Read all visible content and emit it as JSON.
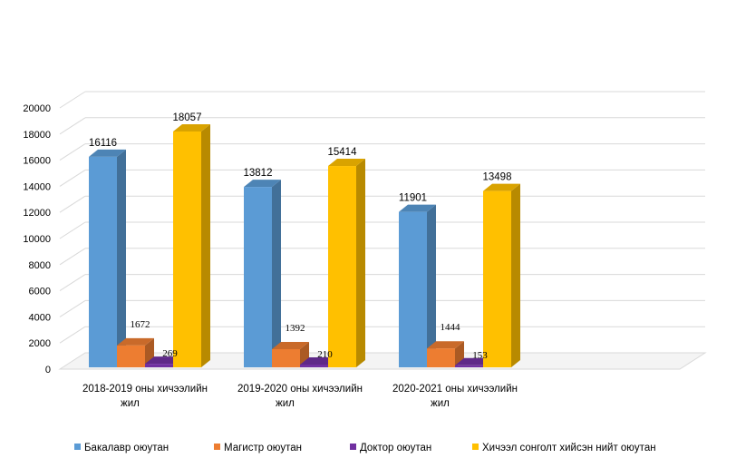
{
  "chart_data": {
    "type": "bar",
    "title": "",
    "xlabel": "",
    "ylabel": "",
    "ylim": [
      0,
      20000
    ],
    "y_ticks": [
      0,
      2000,
      4000,
      6000,
      8000,
      10000,
      12000,
      14000,
      16000,
      18000,
      20000
    ],
    "categories": [
      [
        "2018-2019 оны хичээлийн",
        "жил"
      ],
      [
        "2019-2020 оны хичээлийн",
        "жил"
      ],
      [
        "2020-2021 оны хичээлийн",
        "жил"
      ]
    ],
    "series": [
      {
        "name": "Бакалавр  оюутан",
        "values": [
          16116,
          13812,
          11901
        ],
        "color": "#5B9BD5",
        "label_style": "sans"
      },
      {
        "name": "Магистр  оюутан",
        "values": [
          1672,
          1392,
          1444
        ],
        "color": "#ED7D31",
        "label_style": "serif"
      },
      {
        "name": "Доктор оюутан",
        "values": [
          269,
          210,
          153
        ],
        "color": "#7030A0",
        "label_style": "serif"
      },
      {
        "name": "Хичээл сонголт хийсэн нийт оюутан",
        "values": [
          18057,
          15414,
          13498
        ],
        "color": "#FFC000",
        "label_style": "sans"
      }
    ],
    "grid": true,
    "style": "3d-clustered-column",
    "legend_position": "bottom"
  }
}
